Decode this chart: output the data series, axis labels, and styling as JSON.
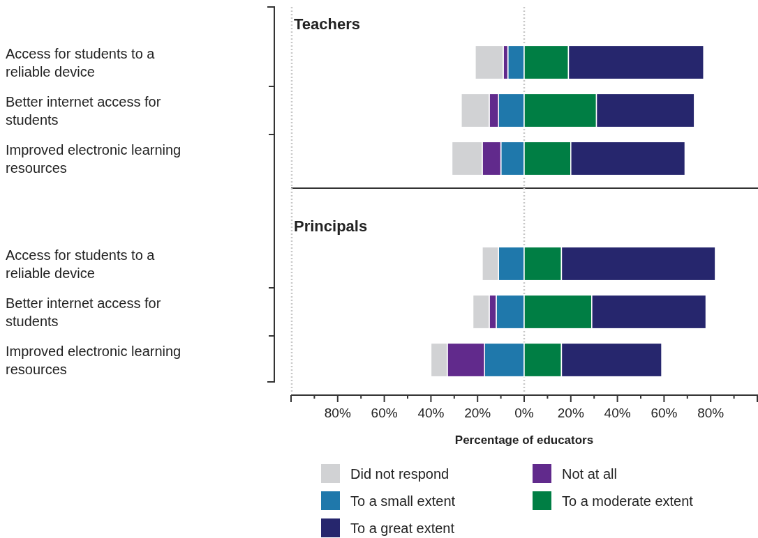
{
  "chart_data": [
    {
      "type": "bar",
      "orientation": "horizontal",
      "stacked": true,
      "title": "Teachers",
      "categories": [
        "Access for students to a reliable device",
        "Better internet access for students",
        "Improved electronic learning resources"
      ],
      "series": [
        {
          "color": "#1f78ab",
          "values": [
            -7,
            -11,
            -10
          ]
        },
        {
          "color": "#612a8c",
          "values": [
            -2,
            -4,
            -8
          ]
        },
        {
          "color": "#d1d2d4",
          "values": [
            -12,
            -12,
            -13
          ]
        },
        {
          "color": "#007e44",
          "values": [
            19,
            31,
            20
          ]
        },
        {
          "color": "#26266d",
          "values": [
            58,
            42,
            49
          ]
        }
      ],
      "xlim": [
        -100,
        100
      ],
      "tick_labels": "y",
      "legend": false,
      "ref_lines": [
        {
          "axis": "x",
          "value": 0,
          "color": "#c8c8c8",
          "line_style": "dotted"
        }
      ]
    },
    {
      "type": "bar",
      "orientation": "horizontal",
      "stacked": true,
      "title": "Principals",
      "xlabel": "Percentage of educators",
      "categories": [
        "Access for students to a reliable device",
        "Better internet access for students",
        "Improved electronic learning resources"
      ],
      "series": [
        {
          "name": "To a small extent",
          "color": "#1f78ab",
          "values": [
            -11,
            -12,
            -17
          ]
        },
        {
          "name": "Not at all",
          "color": "#612a8c",
          "values": [
            0,
            -3,
            -16
          ]
        },
        {
          "name": "Did not respond",
          "color": "#d1d2d4",
          "values": [
            -7,
            -7,
            -7
          ]
        },
        {
          "name": "To a moderate extent",
          "color": "#007e44",
          "values": [
            16,
            29,
            16
          ]
        },
        {
          "name": "To a great extent",
          "color": "#26266d",
          "values": [
            66,
            49,
            43
          ]
        }
      ],
      "xlim": [
        -100,
        100
      ],
      "xticks": [
        {
          "value": -100,
          "label": null
        },
        {
          "value": -90,
          "label": null
        },
        {
          "value": -80,
          "label": "80%"
        },
        {
          "value": -70,
          "label": null
        },
        {
          "value": -60,
          "label": "60%"
        },
        {
          "value": -50,
          "label": null
        },
        {
          "value": -40,
          "label": "40%"
        },
        {
          "value": -30,
          "label": null
        },
        {
          "value": -20,
          "label": "20%"
        },
        {
          "value": -10,
          "label": null
        },
        {
          "value": 0,
          "label": "0%"
        },
        {
          "value": 10,
          "label": null
        },
        {
          "value": 20,
          "label": "20%"
        },
        {
          "value": 30,
          "label": null
        },
        {
          "value": 40,
          "label": "40%"
        },
        {
          "value": 50,
          "label": null
        },
        {
          "value": 60,
          "label": "60%"
        },
        {
          "value": 70,
          "label": null
        },
        {
          "value": 80,
          "label": "80%"
        },
        {
          "value": 90,
          "label": null
        },
        {
          "value": 100,
          "label": null
        }
      ],
      "legend": "bottom",
      "ref_lines": [
        {
          "axis": "x",
          "value": 0,
          "color": "#c8c8c8",
          "line_style": "dotted"
        }
      ]
    }
  ]
}
